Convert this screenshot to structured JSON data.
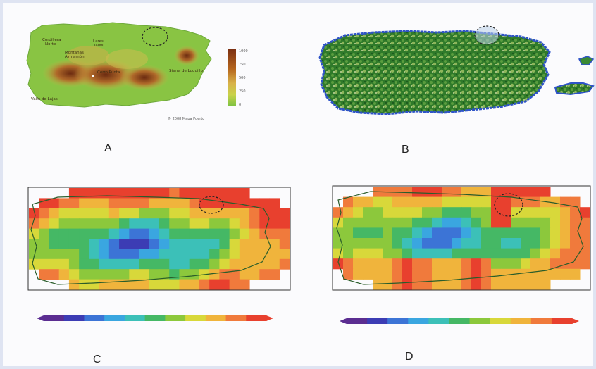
{
  "panels": {
    "a": {
      "label": "A",
      "credit": "© 2008 Mapa Puerto",
      "legend_values": [
        "1000",
        "750",
        "500",
        "250",
        "0"
      ]
    },
    "b": {
      "label": "B"
    },
    "c": {
      "label": "C"
    },
    "d": {
      "label": "D"
    }
  },
  "colors": {
    "frame_border": "#dfe4f2",
    "elev_low": "#7bc242",
    "elev_high": "#7a2e12",
    "veg_green": "#2f7a2a",
    "coast_blue": "#2e53c8"
  },
  "colorbar_c": [
    "#5b2d91",
    "#3c3cb4",
    "#3c74d6",
    "#3aa6e0",
    "#3cc0b8",
    "#45b865",
    "#8cc83c",
    "#d8d83a",
    "#f0b43c",
    "#f07a3c",
    "#e8402e"
  ],
  "colorbar_d": [
    "#5b2d91",
    "#3c3cb4",
    "#3c74d6",
    "#3aa6e0",
    "#3cc0b8",
    "#45b865",
    "#8cc83c",
    "#d8d83a",
    "#f0b43c",
    "#f07a3c",
    "#e8402e"
  ]
}
